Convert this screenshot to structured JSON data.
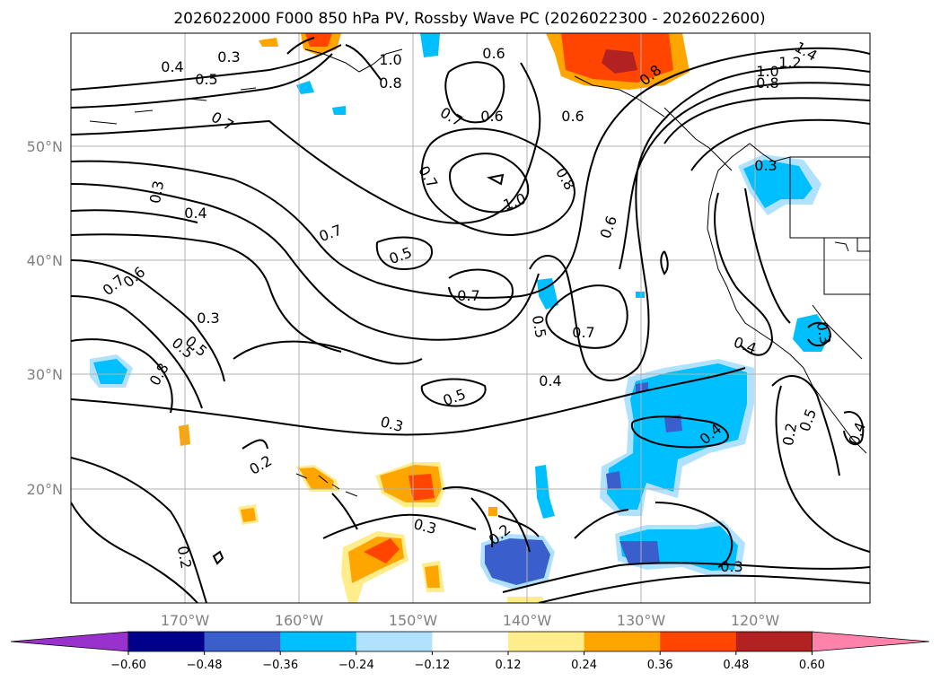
{
  "title": "2026022000 F000 850 hPa PV, Rossby Wave PC (2026022300 - 2026022600)",
  "map": {
    "lon_labels": [
      "170°W",
      "160°W",
      "150°W",
      "140°W",
      "130°W",
      "120°W"
    ],
    "lat_labels": [
      "50°N",
      "40°N",
      "30°N",
      "20°N"
    ],
    "grid": true,
    "contour_labels": [
      "0.3",
      "0.4",
      "0.5",
      "0.7",
      "1.0",
      "0.8",
      "0.6",
      "0.7",
      "0.6",
      "0.6",
      "0.8",
      "1.4",
      "1.2",
      "1.0",
      "0.8",
      "0.3",
      "0.7",
      "1.0",
      "0.8",
      "0.6",
      "0.3",
      "0.4",
      "0.7",
      "0.5",
      "0.7",
      "0.6",
      "0.5",
      "0.3",
      "0.8",
      "0.5",
      "0.7",
      "0.7",
      "0.5",
      "0.4",
      "0.5",
      "0.3",
      "0.4",
      "0.4",
      "0.5",
      "0.3",
      "0.2",
      "0.2",
      "0.2",
      "0.3",
      "0.2",
      "0.3",
      "0.4"
    ]
  },
  "colorbar": {
    "ticks": [
      "−0.60",
      "−0.48",
      "−0.36",
      "−0.24",
      "−0.12",
      "0.12",
      "0.24",
      "0.36",
      "0.48",
      "0.60"
    ],
    "colors": [
      "#9932cc",
      "#00008b",
      "#3a5fcd",
      "#00bfff",
      "#b0e2ff",
      "#ffffff",
      "#ffec8b",
      "#ffa500",
      "#ff4500",
      "#b22222",
      "#ff82ab"
    ]
  }
}
